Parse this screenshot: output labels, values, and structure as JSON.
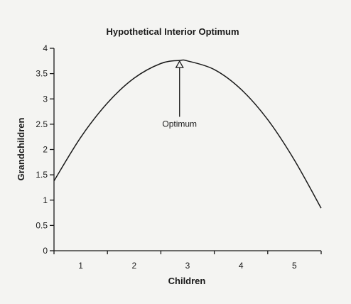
{
  "chart_data": {
    "type": "line",
    "title": "Hypothetical Interior Optimum",
    "xlabel": "Children",
    "ylabel": "Grandchildren",
    "xlim": [
      0.5,
      5.5
    ],
    "ylim": [
      0,
      4
    ],
    "x_ticks": [
      1,
      2,
      3,
      4,
      5
    ],
    "y_ticks": [
      0,
      0.5,
      1,
      1.5,
      2,
      2.5,
      3,
      3.5,
      4
    ],
    "x_tick_labels": [
      "1",
      "2",
      "3",
      "4",
      "5"
    ],
    "y_tick_labels": [
      "0",
      "0.5",
      "1",
      "1.5",
      "2",
      "2.5",
      "3",
      "3.5",
      "4"
    ],
    "grid": false,
    "series": [
      {
        "x": [
          0.5,
          1.0,
          1.5,
          2.0,
          2.5,
          2.85,
          3.0,
          3.5,
          4.0,
          4.5,
          5.0,
          5.5
        ],
        "y": [
          1.38,
          2.24,
          2.92,
          3.41,
          3.7,
          3.76,
          3.75,
          3.58,
          3.19,
          2.59,
          1.79,
          0.84
        ]
      }
    ],
    "annotations": [
      {
        "text": "Optimum",
        "x": 2.85,
        "y": 3.76,
        "marker": "open-triangle-up",
        "text_y": 2.45
      }
    ]
  }
}
